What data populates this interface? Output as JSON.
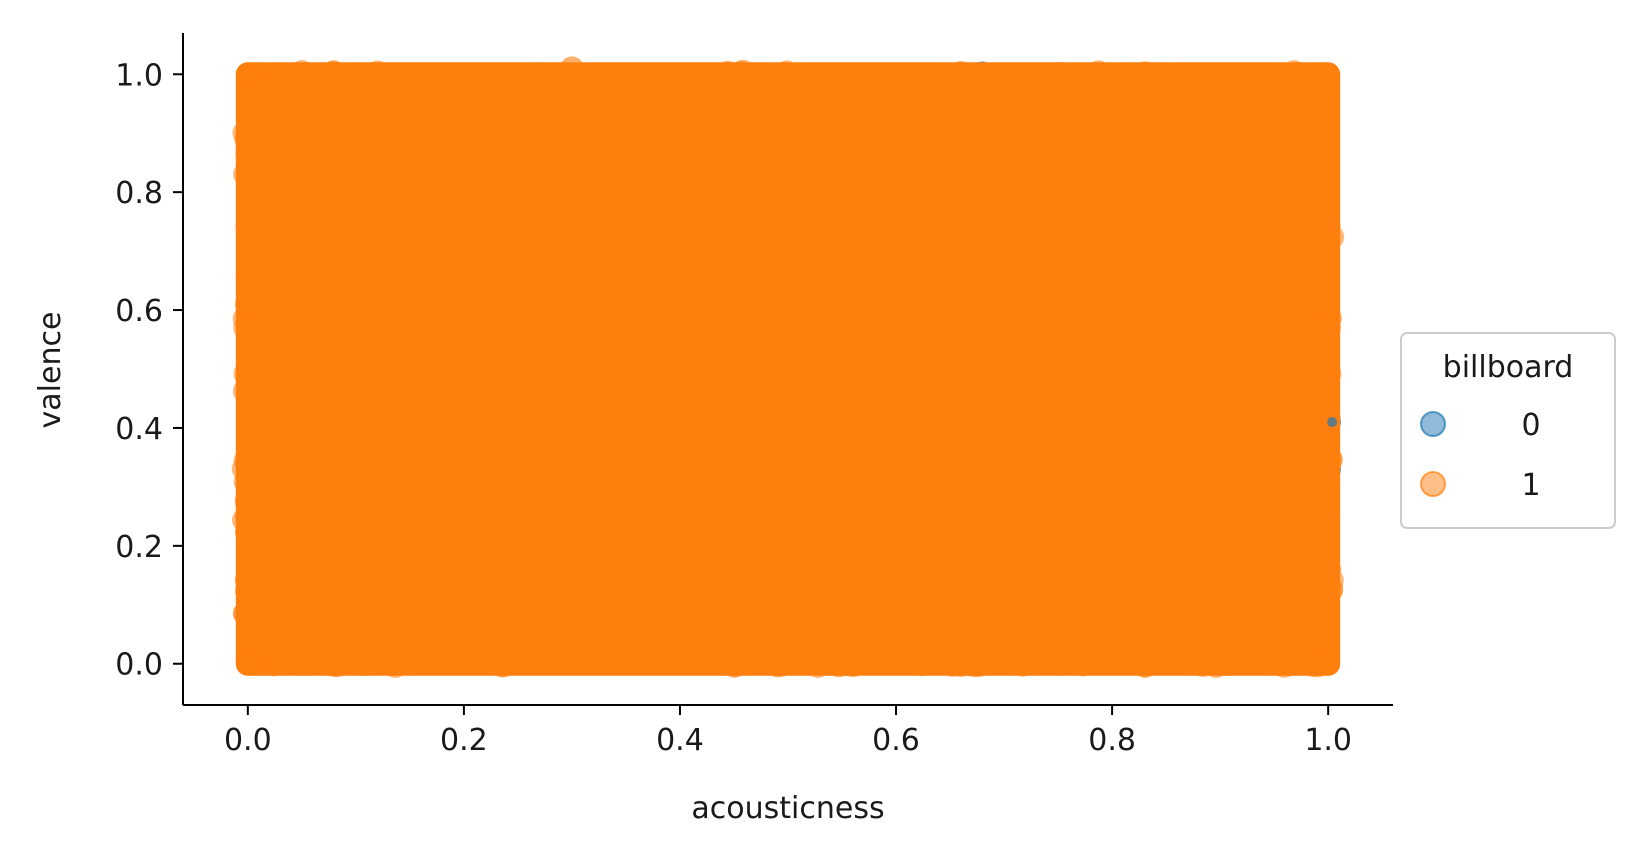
{
  "chart_data": {
    "type": "scatter",
    "title": "",
    "xlabel": "acousticness",
    "ylabel": "valence",
    "xlim": [
      -0.06,
      1.06
    ],
    "ylim": [
      -0.07,
      1.07
    ],
    "x_ticks": [
      "0.0",
      "0.2",
      "0.4",
      "0.6",
      "0.8",
      "1.0"
    ],
    "y_ticks": [
      "0.0",
      "0.2",
      "0.4",
      "0.6",
      "0.8",
      "1.0"
    ],
    "grid": false,
    "legend": {
      "title": "billboard",
      "placement": "outside right",
      "entries": [
        {
          "label": "0",
          "color": "#1f77b4"
        },
        {
          "label": "1",
          "color": "#ff7f0e"
        }
      ]
    },
    "series": [
      {
        "name": "0",
        "color": "#1f77b4",
        "alpha": 0.5,
        "points": [
          [
            0.015,
            0.995
          ],
          [
            0.65,
            0.995
          ],
          [
            0.68,
            1.0
          ],
          [
            1.0,
            0.41
          ],
          [
            1.0,
            0.33
          ]
        ]
      },
      {
        "name": "1",
        "color": "#ff7f0e",
        "alpha": 0.5,
        "x_range": [
          0.0,
          1.0
        ],
        "y_range": [
          0.0,
          1.0
        ],
        "points": [
          [
            0.0,
            0.0
          ],
          [
            0.0,
            1.0
          ],
          [
            1.0,
            0.0
          ],
          [
            1.0,
            0.98
          ],
          [
            0.3,
            1.01
          ],
          [
            0.86,
            1.0
          ],
          [
            0.5,
            0.5
          ],
          [
            0.25,
            0.25
          ],
          [
            0.75,
            0.75
          ],
          [
            0.1,
            0.6
          ],
          [
            0.9,
            0.3
          ]
        ]
      }
    ]
  }
}
